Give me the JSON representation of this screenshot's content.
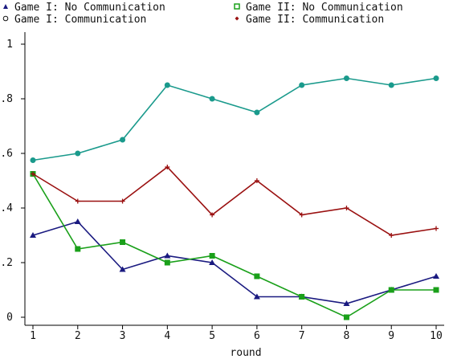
{
  "chart_data": {
    "type": "line",
    "title": "",
    "xlabel": "round",
    "ylabel": "",
    "x": [
      1,
      2,
      3,
      4,
      5,
      6,
      7,
      8,
      9,
      10
    ],
    "xlim": [
      1,
      10
    ],
    "ylim": [
      0,
      1
    ],
    "y_ticks": [
      {
        "value": 0,
        "label": "0"
      },
      {
        "value": 0.2,
        "label": ".2"
      },
      {
        "value": 0.4,
        "label": ".4"
      },
      {
        "value": 0.6,
        "label": ".6"
      },
      {
        "value": 0.8,
        "label": ".8"
      },
      {
        "value": 1,
        "label": "1"
      }
    ],
    "x_ticks": [
      {
        "value": 1,
        "label": "1"
      },
      {
        "value": 2,
        "label": "2"
      },
      {
        "value": 3,
        "label": "3"
      },
      {
        "value": 4,
        "label": "4"
      },
      {
        "value": 5,
        "label": "5"
      },
      {
        "value": 6,
        "label": "6"
      },
      {
        "value": 7,
        "label": "7"
      },
      {
        "value": 8,
        "label": "8"
      },
      {
        "value": 9,
        "label": "9"
      },
      {
        "value": 10,
        "label": "10"
      }
    ],
    "grid": false,
    "legend_position": "top",
    "series": [
      {
        "name": "Game I: No Communication",
        "color": "#1a1a80",
        "marker": "triangle",
        "values": [
          0.3,
          0.35,
          0.175,
          0.225,
          0.2,
          0.075,
          0.075,
          0.05,
          0.1,
          0.15
        ]
      },
      {
        "name": "Game II: No Communication",
        "color": "#1aa01a",
        "marker": "square",
        "values": [
          0.525,
          0.25,
          0.275,
          0.2,
          0.225,
          0.15,
          0.075,
          0.0,
          0.1,
          0.1
        ]
      },
      {
        "name": "Game I: Communication",
        "color": "#1a9a8c",
        "marker": "circle",
        "values": [
          0.575,
          0.6,
          0.65,
          0.85,
          0.8,
          0.75,
          0.85,
          0.875,
          0.85,
          0.875
        ]
      },
      {
        "name": "Game II: Communication",
        "color": "#9a1010",
        "marker": "plus",
        "values": [
          0.525,
          0.425,
          0.425,
          0.55,
          0.375,
          0.5,
          0.375,
          0.4,
          0.3,
          0.325
        ]
      }
    ],
    "legend_order": [
      0,
      1,
      2,
      3
    ]
  }
}
